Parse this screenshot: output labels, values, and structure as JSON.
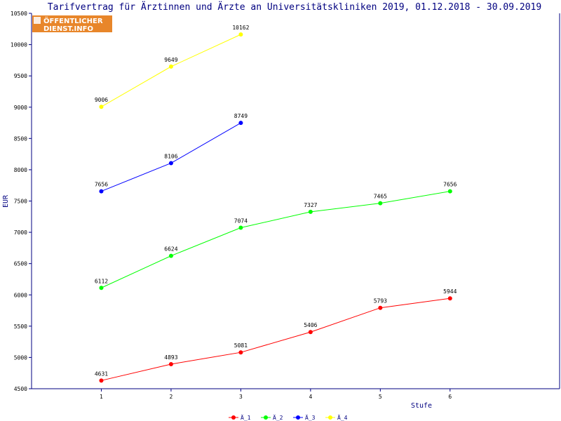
{
  "logo": {
    "line1": "ÖFFENTLICHER",
    "line2": "DIENST.INFO"
  },
  "chart_data": {
    "type": "line",
    "title": "Tarifvertrag für Ärztinnen und Ärzte an Universitätskliniken 2019, 01.12.2018 - 30.09.2019",
    "xlabel": "Stufe",
    "ylabel": "EUR",
    "xlim": [
      0,
      6.5
    ],
    "ylim": [
      4500,
      10500
    ],
    "x_ticks": [
      1,
      2,
      3,
      4,
      5,
      6
    ],
    "y_ticks": [
      4500,
      5000,
      5500,
      6000,
      6500,
      7000,
      7500,
      8000,
      8500,
      9000,
      9500,
      10000,
      10500
    ],
    "grid": false,
    "legend_position": "bottom-center",
    "series": [
      {
        "name": "Ä_1",
        "color": "#ff0000",
        "x": [
          1,
          2,
          3,
          4,
          5,
          6
        ],
        "values": [
          4631,
          4893,
          5081,
          5406,
          5793,
          5944
        ]
      },
      {
        "name": "Ä_2",
        "color": "#00ff00",
        "x": [
          1,
          2,
          3,
          4,
          5,
          6
        ],
        "values": [
          6112,
          6624,
          7074,
          7327,
          7465,
          7656
        ]
      },
      {
        "name": "Ä_3",
        "color": "#0000ff",
        "x": [
          1,
          2,
          3
        ],
        "values": [
          7656,
          8106,
          8749
        ]
      },
      {
        "name": "Ä_4",
        "color": "#ffff00",
        "x": [
          1,
          2,
          3
        ],
        "values": [
          9006,
          9649,
          10162
        ]
      }
    ]
  }
}
